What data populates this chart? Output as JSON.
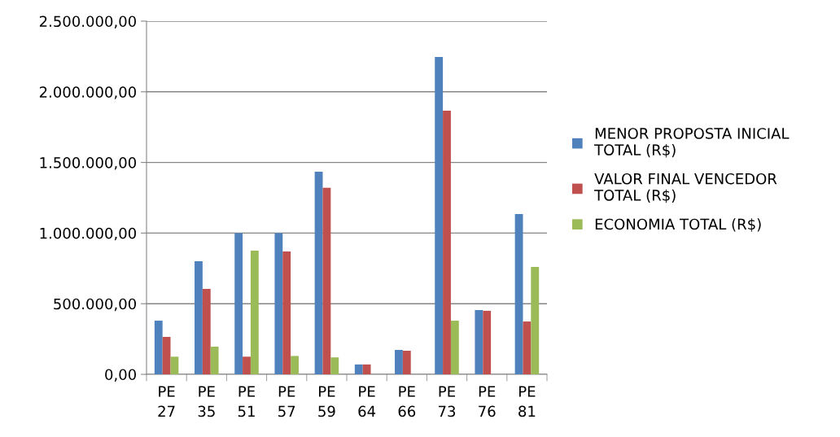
{
  "chart_data": {
    "type": "bar",
    "categories": [
      "PE\n27",
      "PE\n35",
      "PE\n51",
      "PE\n57",
      "PE\n59",
      "PE\n64",
      "PE\n66",
      "PE\n73",
      "PE\n76",
      "PE\n81"
    ],
    "series": [
      {
        "name": "MENOR PROPOSTA INICIAL\nTOTAL (R$)",
        "color": "#4f81bd",
        "values": [
          380000,
          800000,
          1000000,
          1000000,
          1435000,
          70000,
          173000,
          2247000,
          455000,
          1135000
        ]
      },
      {
        "name": "VALOR FINAL VENCEDOR\nTOTAL (R$)",
        "color": "#c0504d",
        "values": [
          265000,
          605000,
          125000,
          870000,
          1320000,
          70000,
          167000,
          1866000,
          450000,
          374000
        ]
      },
      {
        "name": "ECONOMIA TOTAL (R$)",
        "color": "#9bbb59",
        "values": [
          125000,
          196000,
          875000,
          130000,
          120000,
          0,
          null,
          380000,
          null,
          760000
        ]
      }
    ],
    "ylim": [
      0,
      2500000
    ],
    "yticks": [
      {
        "value": 0,
        "label": "0,00"
      },
      {
        "value": 500000,
        "label": "500.000,00"
      },
      {
        "value": 1000000,
        "label": "1.000.000,00"
      },
      {
        "value": 1500000,
        "label": "1.500.000,00"
      },
      {
        "value": 2000000,
        "label": "2.000.000,00"
      },
      {
        "value": 2500000,
        "label": "2.500.000,00"
      }
    ],
    "grid": "y",
    "legend": "right"
  }
}
